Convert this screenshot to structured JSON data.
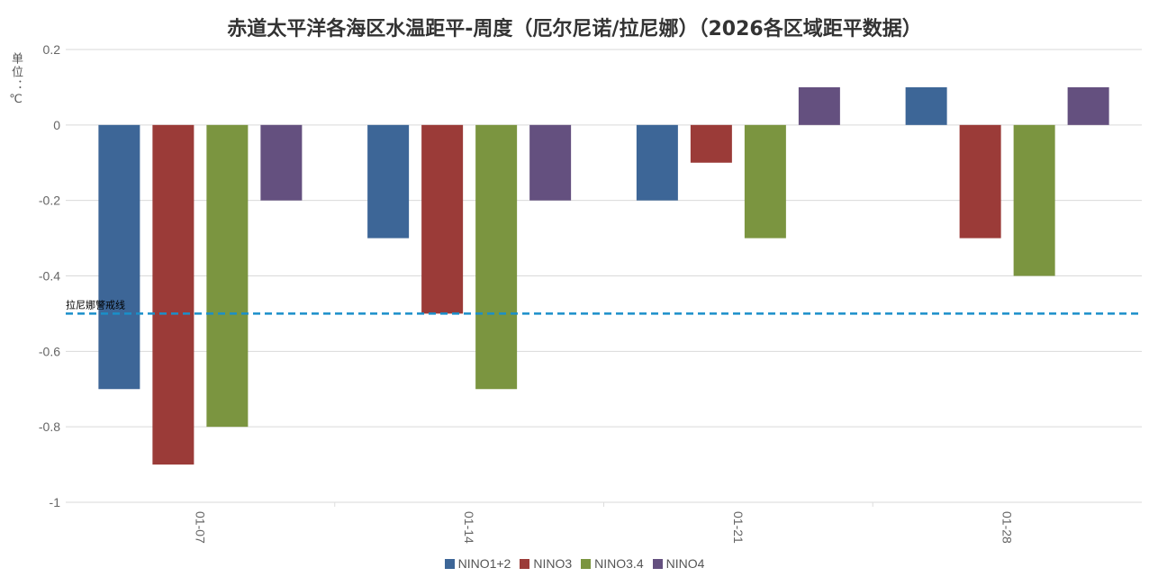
{
  "chart_data": {
    "type": "bar",
    "title": "赤道太平洋各海区水温距平-周度（厄尔尼诺/拉尼娜）（2026各区域距平数据）",
    "ylabel": "单位：℃",
    "xlabel": "",
    "categories": [
      "01-07",
      "01-14",
      "01-21",
      "01-28"
    ],
    "series": [
      {
        "name": "NINO1+2",
        "color": "#3d6697",
        "values": [
          -0.7,
          -0.3,
          -0.2,
          0.1
        ]
      },
      {
        "name": "NINO3",
        "color": "#9b3b38",
        "values": [
          -0.9,
          -0.5,
          -0.1,
          -0.3
        ]
      },
      {
        "name": "NINO3.4",
        "color": "#7b9540",
        "values": [
          -0.8,
          -0.7,
          -0.3,
          -0.4
        ]
      },
      {
        "name": "NINO4",
        "color": "#64507f",
        "values": [
          -0.2,
          -0.2,
          0.1,
          0.1
        ]
      }
    ],
    "ylim": [
      -1,
      0.2
    ],
    "yticks": [
      0.2,
      0,
      -0.2,
      -0.4,
      -0.6,
      -0.8,
      -1
    ],
    "ytick_labels": [
      "0.2",
      "0",
      "-0.2",
      "-0.4",
      "-0.6",
      "-0.8",
      "-1"
    ],
    "grid": true,
    "legend": "bottom-center",
    "reference_line": {
      "value": -0.5,
      "label": "拉尼娜警戒线",
      "color": "#1a8fc9"
    }
  }
}
